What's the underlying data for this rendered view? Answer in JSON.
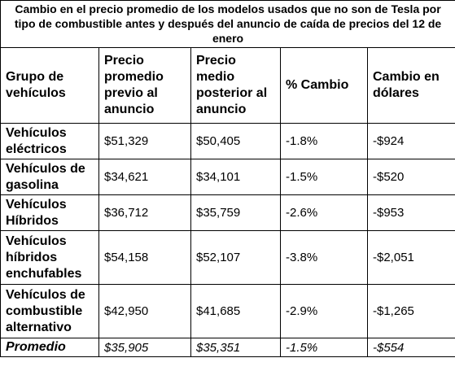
{
  "table": {
    "caption": "Cambio en el precio promedio de los modelos usados que no son de Tesla por tipo de combustible antes y después del anuncio de caída de precios del 12 de enero",
    "headers": [
      "Grupo de vehículos",
      "Precio promedio previo al anuncio",
      "Precio medio posterior al anuncio",
      "% Cambio",
      "Cambio en dólares"
    ],
    "rows": [
      [
        "Vehículos eléctricos",
        "$51,329",
        "$50,405",
        "-1.8%",
        "-$924"
      ],
      [
        "Vehículos de gasolina",
        "$34,621",
        "$34,101",
        "-1.5%",
        "-$520"
      ],
      [
        "Vehículos Híbridos",
        "$36,712",
        "$35,759",
        "-2.6%",
        "-$953"
      ],
      [
        "Vehículos híbridos enchufables",
        "$54,158",
        "$52,107",
        "-3.8%",
        "-$2,051"
      ],
      [
        "Vehículos de combustible alternativo",
        "$42,950",
        "$41,685",
        "-2.9%",
        "-$1,265"
      ]
    ],
    "average": [
      "Promedio",
      "$35,905",
      "$35,351",
      "-1.5%",
      "-$554"
    ]
  }
}
